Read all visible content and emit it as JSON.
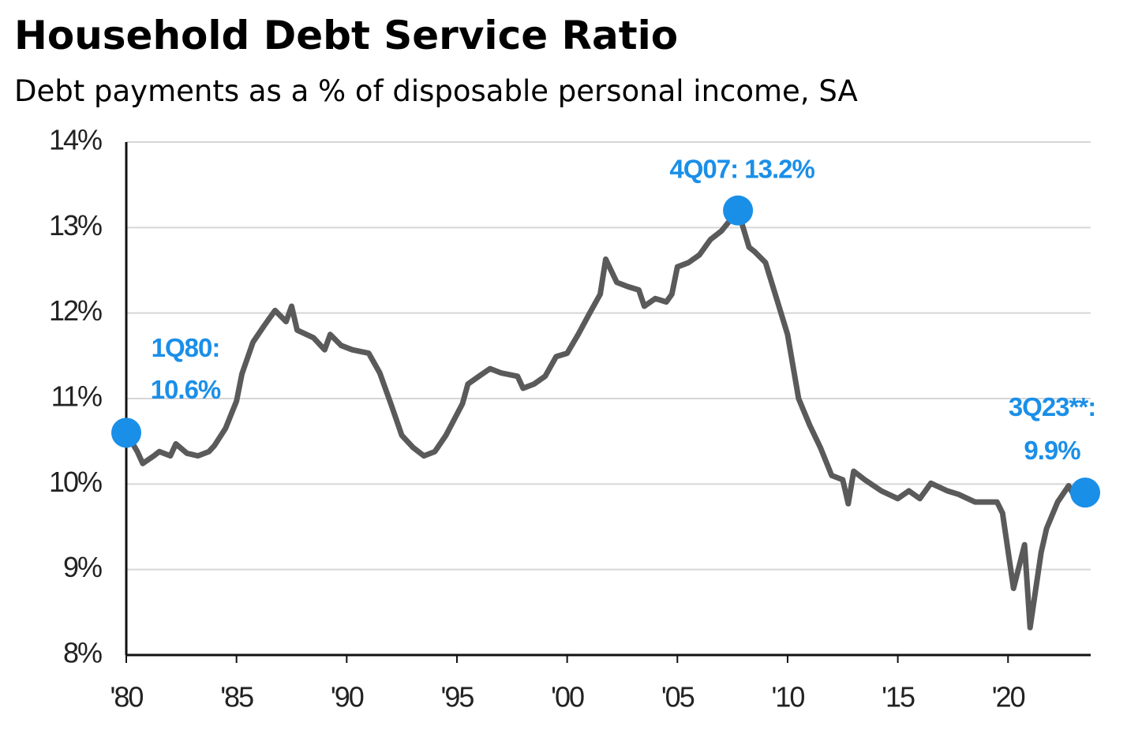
{
  "chart_data": {
    "type": "line",
    "title": "Household Debt Service Ratio",
    "subtitle": "Debt payments as a % of disposable personal income, SA",
    "color": "#5a5a5a",
    "marker_color": "#1a8fe8",
    "grid": true,
    "xlim": [
      1980,
      2023.75
    ],
    "ylim": [
      8,
      14
    ],
    "xticks": [
      {
        "value": 1980,
        "label": "'80"
      },
      {
        "value": 1985,
        "label": "'85"
      },
      {
        "value": 1990,
        "label": "'90"
      },
      {
        "value": 1995,
        "label": "'95"
      },
      {
        "value": 2000,
        "label": "'00"
      },
      {
        "value": 2005,
        "label": "'05"
      },
      {
        "value": 2010,
        "label": "'10"
      },
      {
        "value": 2015,
        "label": "'15"
      },
      {
        "value": 2020,
        "label": "'20"
      }
    ],
    "yticks": [
      {
        "value": 8,
        "label": "8%"
      },
      {
        "value": 9,
        "label": "9%"
      },
      {
        "value": 10,
        "label": "10%"
      },
      {
        "value": 11,
        "label": "11%"
      },
      {
        "value": 12,
        "label": "12%"
      },
      {
        "value": 13,
        "label": "13%"
      },
      {
        "value": 14,
        "label": "14%"
      }
    ],
    "x": [
      1980,
      1980.5,
      1980.75,
      1981.25,
      1981.5,
      1982,
      1982.25,
      1982.75,
      1983.25,
      1983.75,
      1984,
      1984.5,
      1985,
      1985.25,
      1985.75,
      1986.25,
      1986.75,
      1987.25,
      1987.5,
      1987.75,
      1988.5,
      1989,
      1989.25,
      1989.75,
      1990.25,
      1991,
      1991.5,
      1992,
      1992.5,
      1993,
      1993.5,
      1994,
      1994.5,
      1995.25,
      1995.5,
      1996,
      1996.5,
      1997,
      1997.75,
      1998,
      1998.5,
      1999,
      1999.5,
      2000,
      2000.5,
      2001,
      2001.5,
      2001.75,
      2002.25,
      2002.75,
      2003.25,
      2003.5,
      2004,
      2004.5,
      2004.75,
      2005,
      2005.5,
      2006,
      2006.5,
      2007,
      2007.75,
      2008.25,
      2008.5,
      2009,
      2009.5,
      2010,
      2010.5,
      2011,
      2011.5,
      2012,
      2012.5,
      2012.75,
      2013,
      2013.5,
      2014.25,
      2015,
      2015.5,
      2016,
      2016.5,
      2017.25,
      2017.75,
      2018.5,
      2019,
      2019.5,
      2019.75,
      2020.25,
      2020.75,
      2021,
      2021.5,
      2021.75,
      2022.25,
      2022.75,
      2023,
      2023.5
    ],
    "values": [
      10.6,
      10.38,
      10.24,
      10.33,
      10.38,
      10.33,
      10.47,
      10.36,
      10.33,
      10.38,
      10.45,
      10.65,
      10.97,
      11.29,
      11.66,
      11.85,
      12.03,
      11.9,
      12.08,
      11.8,
      11.71,
      11.57,
      11.75,
      11.62,
      11.57,
      11.53,
      11.3,
      10.94,
      10.57,
      10.43,
      10.33,
      10.38,
      10.57,
      10.94,
      11.17,
      11.26,
      11.35,
      11.3,
      11.26,
      11.12,
      11.17,
      11.26,
      11.49,
      11.53,
      11.75,
      11.99,
      12.22,
      12.63,
      12.36,
      12.31,
      12.27,
      12.08,
      12.17,
      12.13,
      12.22,
      12.54,
      12.59,
      12.68,
      12.86,
      12.96,
      13.2,
      12.77,
      12.72,
      12.59,
      12.17,
      11.75,
      11.0,
      10.69,
      10.42,
      10.1,
      10.05,
      9.77,
      10.15,
      10.05,
      9.92,
      9.83,
      9.92,
      9.83,
      10.01,
      9.92,
      9.88,
      9.79,
      9.79,
      9.79,
      9.66,
      8.78,
      9.29,
      8.32,
      9.2,
      9.48,
      9.79,
      9.98,
      9.86,
      9.9
    ],
    "annotations": [
      {
        "x": 1980,
        "y": 10.6,
        "lines": [
          "1Q80:",
          "10.6%"
        ]
      },
      {
        "x": 2007.75,
        "y": 13.2,
        "lines": [
          "4Q07:  13.2%"
        ]
      },
      {
        "x": 2023.5,
        "y": 9.9,
        "lines": [
          "3Q23**:",
          "9.9%"
        ]
      }
    ]
  }
}
